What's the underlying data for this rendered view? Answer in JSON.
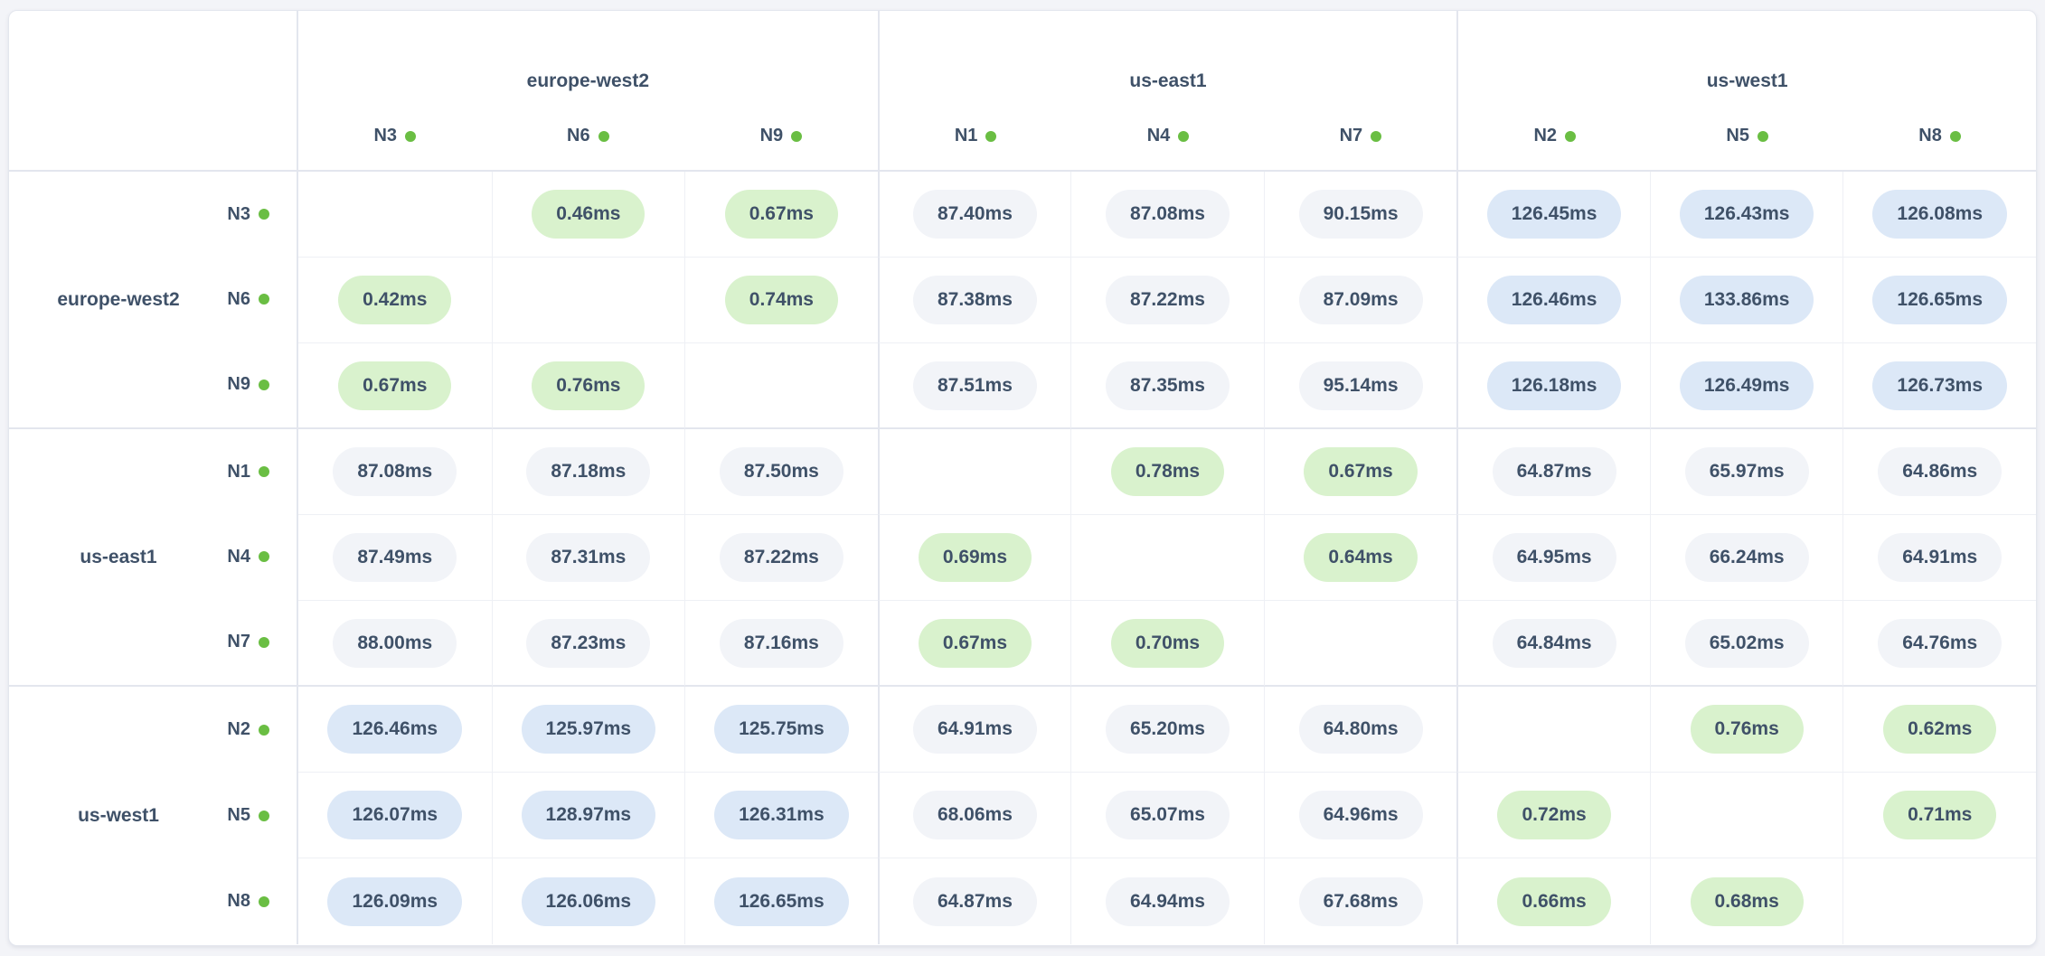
{
  "table": {
    "groups": [
      {
        "region": "europe-west2",
        "nodes": [
          "N3",
          "N6",
          "N9"
        ]
      },
      {
        "region": "us-east1",
        "nodes": [
          "N1",
          "N4",
          "N7"
        ]
      },
      {
        "region": "us-west1",
        "nodes": [
          "N2",
          "N5",
          "N8"
        ]
      }
    ],
    "matrix": [
      [
        null,
        "0.46ms",
        "0.67ms",
        "87.40ms",
        "87.08ms",
        "90.15ms",
        "126.45ms",
        "126.43ms",
        "126.08ms"
      ],
      [
        "0.42ms",
        null,
        "0.74ms",
        "87.38ms",
        "87.22ms",
        "87.09ms",
        "126.46ms",
        "133.86ms",
        "126.65ms"
      ],
      [
        "0.67ms",
        "0.76ms",
        null,
        "87.51ms",
        "87.35ms",
        "95.14ms",
        "126.18ms",
        "126.49ms",
        "126.73ms"
      ],
      [
        "87.08ms",
        "87.18ms",
        "87.50ms",
        null,
        "0.78ms",
        "0.67ms",
        "64.87ms",
        "65.97ms",
        "64.86ms"
      ],
      [
        "87.49ms",
        "87.31ms",
        "87.22ms",
        "0.69ms",
        null,
        "0.64ms",
        "64.95ms",
        "66.24ms",
        "64.91ms"
      ],
      [
        "88.00ms",
        "87.23ms",
        "87.16ms",
        "0.67ms",
        "0.70ms",
        null,
        "64.84ms",
        "65.02ms",
        "64.76ms"
      ],
      [
        "126.46ms",
        "125.97ms",
        "125.75ms",
        "64.91ms",
        "65.20ms",
        "64.80ms",
        null,
        "0.76ms",
        "0.62ms"
      ],
      [
        "126.07ms",
        "128.97ms",
        "126.31ms",
        "68.06ms",
        "65.07ms",
        "64.96ms",
        "0.72ms",
        null,
        "0.71ms"
      ],
      [
        "126.09ms",
        "126.06ms",
        "126.65ms",
        "64.87ms",
        "64.94ms",
        "67.68ms",
        "0.66ms",
        "0.68ms",
        null
      ]
    ],
    "tier_thresholds": {
      "fast_below_ms": 10,
      "mid_below_ms": 100
    }
  },
  "colors": {
    "page_bg": "#f3f4f8",
    "card_bg": "#ffffff",
    "text": "#3f5168",
    "dot": "#6abe43",
    "fast_bg": "#d9f2cd",
    "mid_bg": "#f2f4f8",
    "slow_bg": "#dce8f7",
    "border_strong": "#e3e6ee",
    "border_light": "#eef0f5"
  }
}
